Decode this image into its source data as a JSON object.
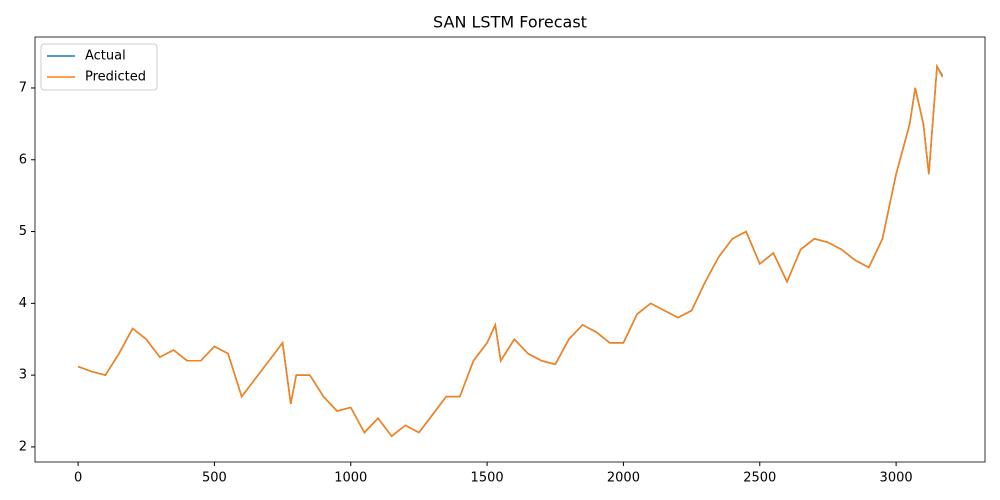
{
  "chart_data": {
    "type": "line",
    "title": "SAN LSTM Forecast",
    "x": [
      0,
      50,
      100,
      150,
      200,
      250,
      300,
      350,
      400,
      450,
      500,
      550,
      600,
      650,
      700,
      750,
      780,
      800,
      850,
      900,
      950,
      1000,
      1050,
      1100,
      1150,
      1200,
      1250,
      1300,
      1350,
      1400,
      1450,
      1500,
      1530,
      1550,
      1600,
      1650,
      1700,
      1750,
      1800,
      1850,
      1900,
      1950,
      2000,
      2050,
      2100,
      2150,
      2200,
      2250,
      2300,
      2350,
      2400,
      2450,
      2500,
      2550,
      2600,
      2650,
      2700,
      2750,
      2800,
      2850,
      2900,
      2950,
      3000,
      3050,
      3070,
      3100,
      3120,
      3150,
      3170
    ],
    "series": [
      {
        "name": "Actual",
        "color": "#1f77b4",
        "values": [
          3.12,
          3.05,
          3.0,
          3.3,
          3.65,
          3.5,
          3.25,
          3.35,
          3.2,
          3.2,
          3.4,
          3.3,
          2.7,
          2.95,
          3.2,
          3.45,
          2.6,
          3.0,
          3.0,
          2.7,
          2.5,
          2.55,
          2.2,
          2.4,
          2.15,
          2.3,
          2.2,
          2.45,
          2.7,
          2.7,
          3.2,
          3.45,
          3.7,
          3.2,
          3.5,
          3.3,
          3.2,
          3.15,
          3.5,
          3.7,
          3.6,
          3.45,
          3.45,
          3.85,
          4.0,
          3.9,
          3.8,
          3.9,
          4.3,
          4.65,
          4.9,
          5.0,
          4.55,
          4.7,
          4.3,
          4.75,
          4.9,
          4.85,
          4.75,
          4.6,
          4.5,
          4.9,
          5.8,
          6.5,
          7.0,
          6.5,
          5.8,
          7.3,
          7.17
        ]
      },
      {
        "name": "Predicted",
        "color": "#ff7f0e",
        "values": [
          3.12,
          3.05,
          3.0,
          3.3,
          3.65,
          3.5,
          3.25,
          3.35,
          3.2,
          3.2,
          3.4,
          3.3,
          2.7,
          2.95,
          3.2,
          3.45,
          2.6,
          3.0,
          3.0,
          2.7,
          2.5,
          2.55,
          2.2,
          2.4,
          2.15,
          2.3,
          2.2,
          2.45,
          2.7,
          2.7,
          3.2,
          3.45,
          3.7,
          3.2,
          3.5,
          3.3,
          3.2,
          3.15,
          3.5,
          3.7,
          3.6,
          3.45,
          3.45,
          3.85,
          4.0,
          3.9,
          3.8,
          3.9,
          4.3,
          4.65,
          4.9,
          5.0,
          4.55,
          4.7,
          4.3,
          4.75,
          4.9,
          4.85,
          4.75,
          4.6,
          4.5,
          4.9,
          5.8,
          6.5,
          7.0,
          6.5,
          5.8,
          7.3,
          7.15
        ]
      }
    ],
    "xlim": [
      -158,
      3326
    ],
    "ylim": [
      1.79,
      7.71
    ],
    "xticks": [
      0,
      500,
      1000,
      1500,
      2000,
      2500,
      3000
    ],
    "yticks": [
      2,
      3,
      4,
      5,
      6,
      7
    ],
    "legend": "upper left"
  }
}
